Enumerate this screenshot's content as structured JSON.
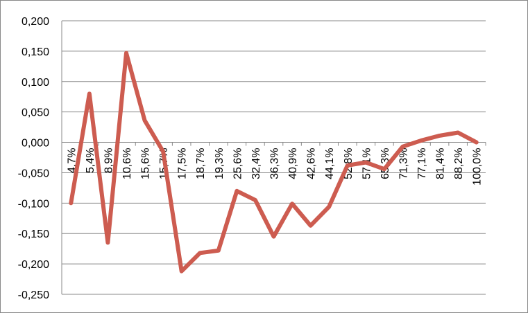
{
  "chart_data": {
    "type": "line",
    "categories": [
      "4,7%",
      "5,4%",
      "8,9%",
      "10,6%",
      "15,6%",
      "15,7%",
      "17,5%",
      "18,7%",
      "19,3%",
      "25,6%",
      "32,4%",
      "36,3%",
      "40,9%",
      "42,6%",
      "44,1%",
      "52,8%",
      "57,1%",
      "65,3%",
      "71,3%",
      "77,1%",
      "81,4%",
      "88,2%",
      "100,0%"
    ],
    "series": [
      {
        "color": "#cd5c50",
        "values": [
          -0.1,
          0.08,
          -0.165,
          0.147,
          0.036,
          -0.015,
          -0.212,
          -0.182,
          -0.178,
          -0.08,
          -0.095,
          -0.155,
          -0.101,
          -0.137,
          -0.106,
          -0.038,
          -0.033,
          -0.044,
          -0.007,
          0.003,
          0.011,
          0.016,
          0.0
        ]
      }
    ],
    "ylim": [
      -0.25,
      0.2
    ],
    "yticks": [
      {
        "value": -0.25,
        "label": "-0,250"
      },
      {
        "value": -0.2,
        "label": "-0,200"
      },
      {
        "value": -0.15,
        "label": "-0,150"
      },
      {
        "value": -0.1,
        "label": "-0,100"
      },
      {
        "value": -0.05,
        "label": "-0,050"
      },
      {
        "value": 0,
        "label": "0,000"
      },
      {
        "value": 0.05,
        "label": "0,050"
      },
      {
        "value": 0.1,
        "label": "0,100"
      },
      {
        "value": 0.15,
        "label": "0,150"
      },
      {
        "value": 0.2,
        "label": "0,200"
      }
    ],
    "grid": true
  }
}
